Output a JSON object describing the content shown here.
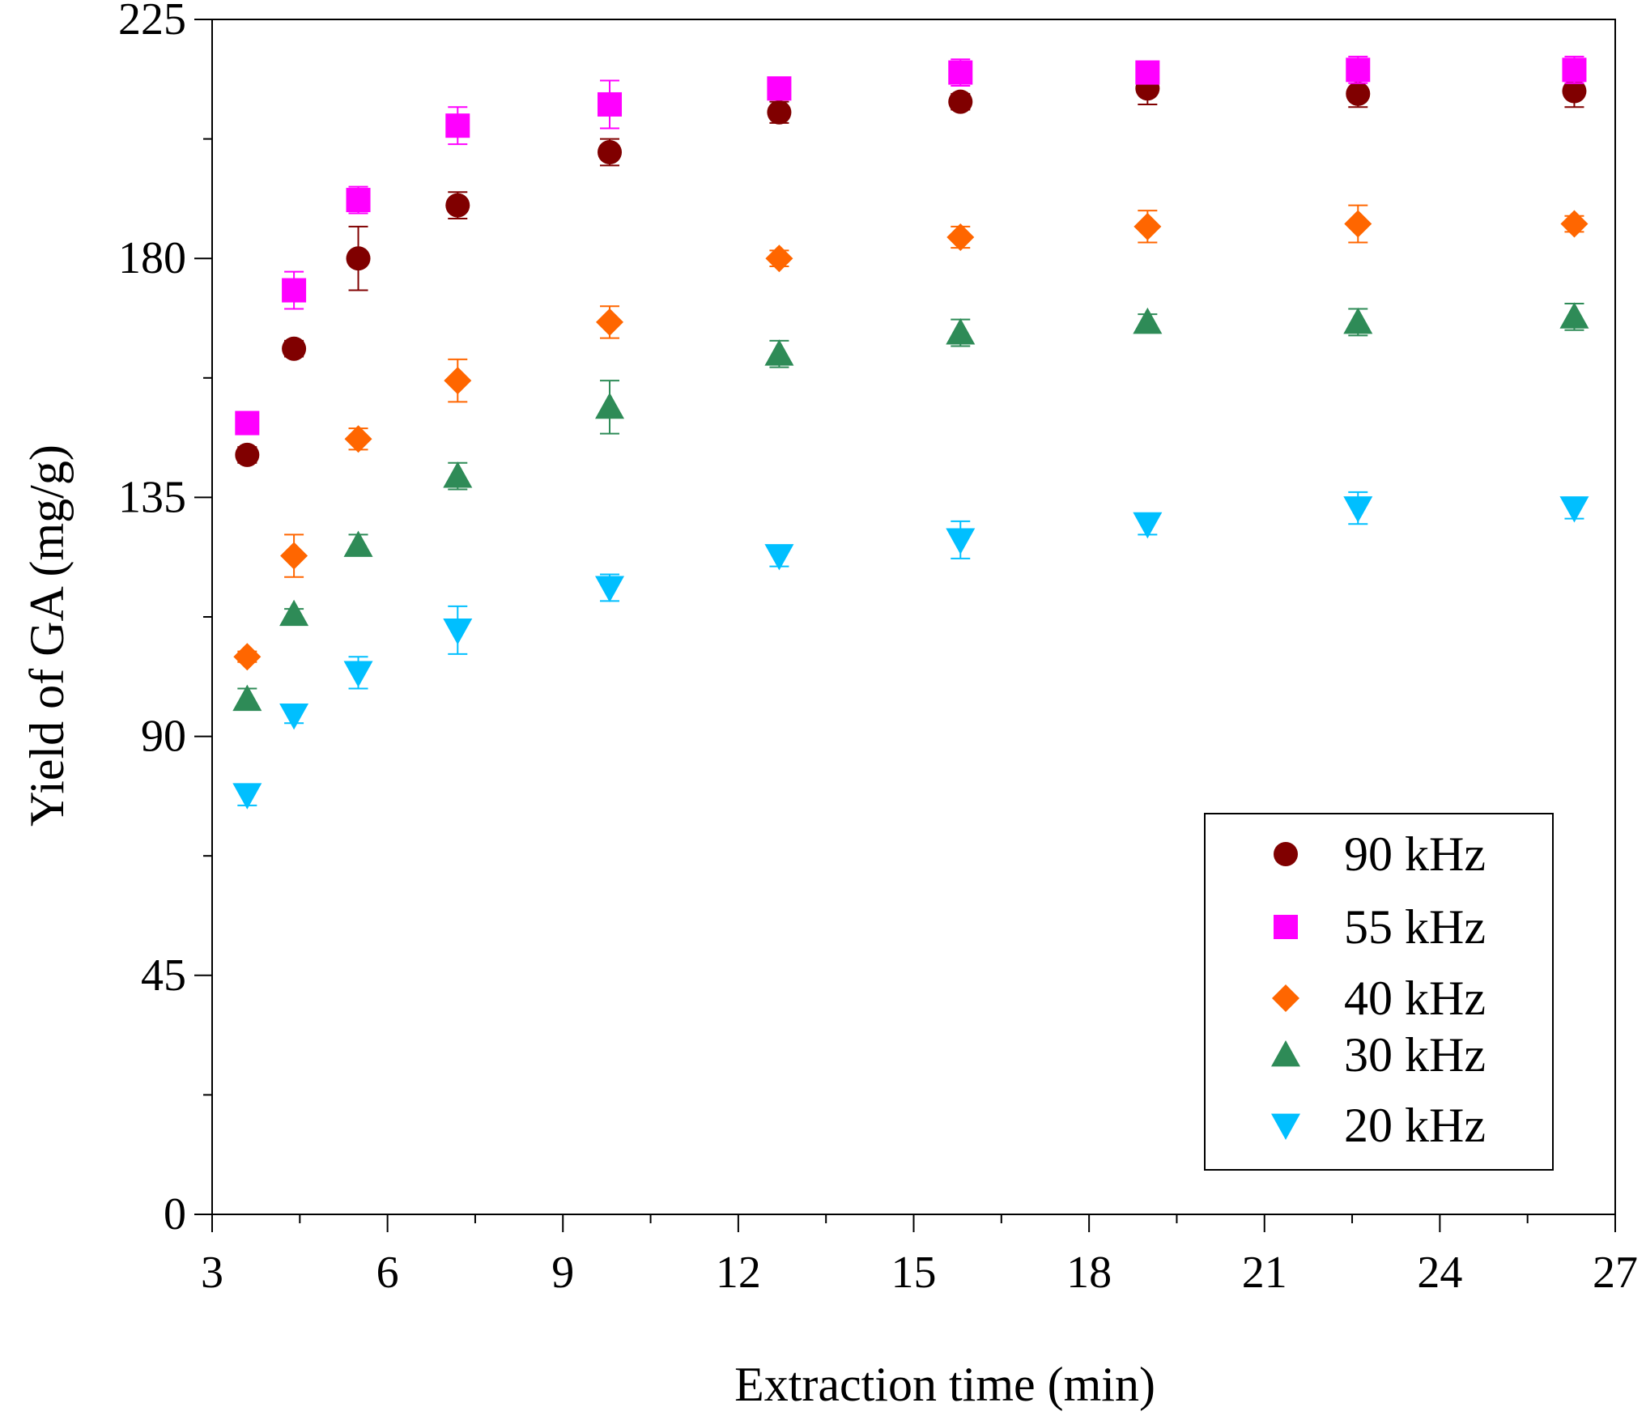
{
  "chart_data": {
    "type": "scatter",
    "title": "",
    "xlabel": "Extraction time (min)",
    "ylabel": "Yield of GA (mg/g)",
    "xlim": [
      3,
      27
    ],
    "ylim": [
      0,
      225
    ],
    "xticks": [
      3,
      6,
      9,
      12,
      15,
      18,
      21,
      24,
      27
    ],
    "yticks": [
      0,
      45,
      90,
      135,
      180,
      225
    ],
    "grid": false,
    "legend_position": "bottom-right",
    "error_bars": true,
    "series": [
      {
        "name": "90 kHz",
        "marker": "circle",
        "color": "#800000",
        "x": [
          3.6,
          4.4,
          5.5,
          7.2,
          9.8,
          12.7,
          15.8,
          19.0,
          22.6,
          26.3
        ],
        "y": [
          143,
          163,
          180,
          190,
          200,
          207.5,
          209.5,
          212,
          211,
          211.5
        ],
        "err": [
          1.5,
          1.5,
          6,
          2.5,
          2.5,
          2,
          1.5,
          3,
          2.5,
          3
        ]
      },
      {
        "name": "55 kHz",
        "marker": "square",
        "color": "#FF00FF",
        "x": [
          3.6,
          4.4,
          5.5,
          7.2,
          9.8,
          12.7,
          15.8,
          19.0,
          22.6,
          26.3
        ],
        "y": [
          149,
          174,
          191,
          205,
          209,
          212,
          215,
          215,
          215.5,
          215.5
        ],
        "err": [
          2,
          3.5,
          2.5,
          3.5,
          4.5,
          2,
          2.5,
          2,
          2.5,
          2.5
        ]
      },
      {
        "name": "40 kHz",
        "marker": "diamond",
        "color": "#FF6600",
        "x": [
          3.6,
          4.4,
          5.5,
          7.2,
          9.8,
          12.7,
          15.8,
          19.0,
          22.6,
          26.3
        ],
        "y": [
          105,
          124,
          146,
          157,
          168,
          180,
          184,
          186,
          186.5,
          186.5
        ],
        "err": [
          1,
          4,
          2,
          4,
          3,
          1.5,
          2,
          3,
          3.5,
          1.5
        ]
      },
      {
        "name": "30 kHz",
        "marker": "triangle-up",
        "color": "#2E8B57",
        "x": [
          3.6,
          4.4,
          5.5,
          7.2,
          9.8,
          12.7,
          15.8,
          19.0,
          22.6,
          26.3
        ],
        "y": [
          97,
          113,
          126,
          139,
          152,
          162,
          166,
          168,
          168,
          169
        ],
        "err": [
          2,
          1,
          2,
          2.5,
          5,
          2.5,
          2.5,
          1.5,
          2.5,
          2.5
        ]
      },
      {
        "name": "20 kHz",
        "marker": "triangle-down",
        "color": "#00BFFF",
        "x": [
          3.6,
          4.4,
          5.5,
          7.2,
          9.8,
          12.7,
          15.8,
          19.0,
          22.6,
          26.3
        ],
        "y": [
          79,
          94,
          102,
          110,
          118,
          124,
          127,
          130,
          133,
          133
        ],
        "err": [
          2,
          1.5,
          3,
          4.5,
          2.5,
          2,
          3.5,
          2,
          3,
          2
        ]
      }
    ]
  }
}
